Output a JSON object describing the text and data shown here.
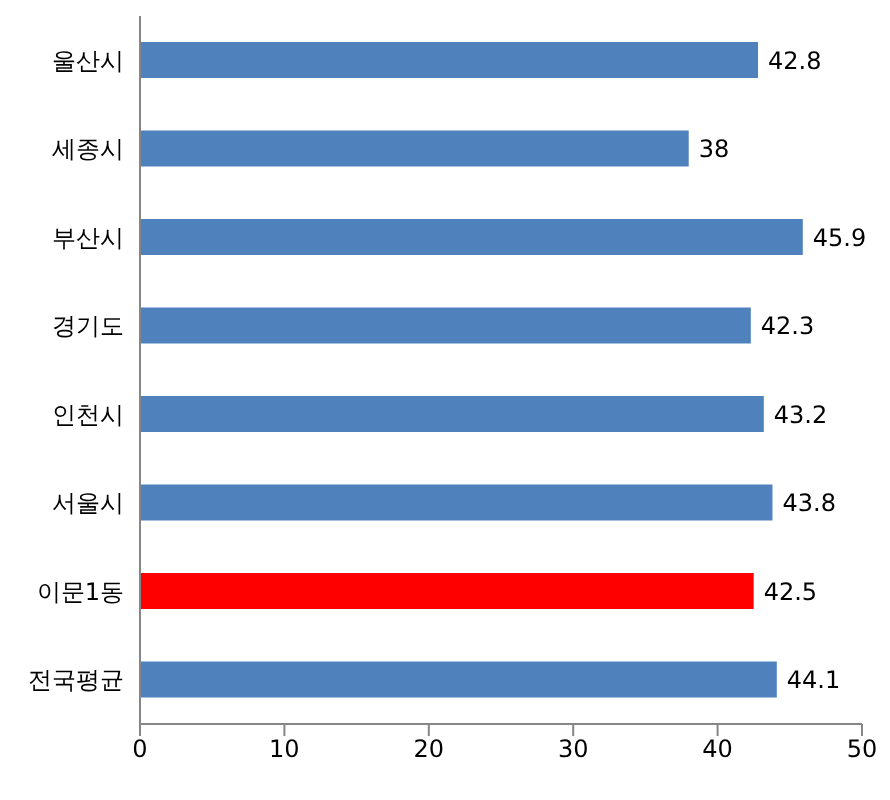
{
  "chart_data": {
    "type": "bar",
    "orientation": "horizontal",
    "categories": [
      "울산시",
      "세종시",
      "부산시",
      "경기도",
      "인천시",
      "서울시",
      "이문1동",
      "전국평균"
    ],
    "values": [
      42.8,
      38,
      45.9,
      42.3,
      43.2,
      43.8,
      42.5,
      44.1
    ],
    "colors": [
      "#4f81bd",
      "#4f81bd",
      "#4f81bd",
      "#4f81bd",
      "#4f81bd",
      "#4f81bd",
      "#ff0000",
      "#4f81bd"
    ],
    "xlim": [
      0,
      50
    ],
    "xticks": [
      0,
      10,
      20,
      30,
      40,
      50
    ],
    "data_labels": true
  }
}
